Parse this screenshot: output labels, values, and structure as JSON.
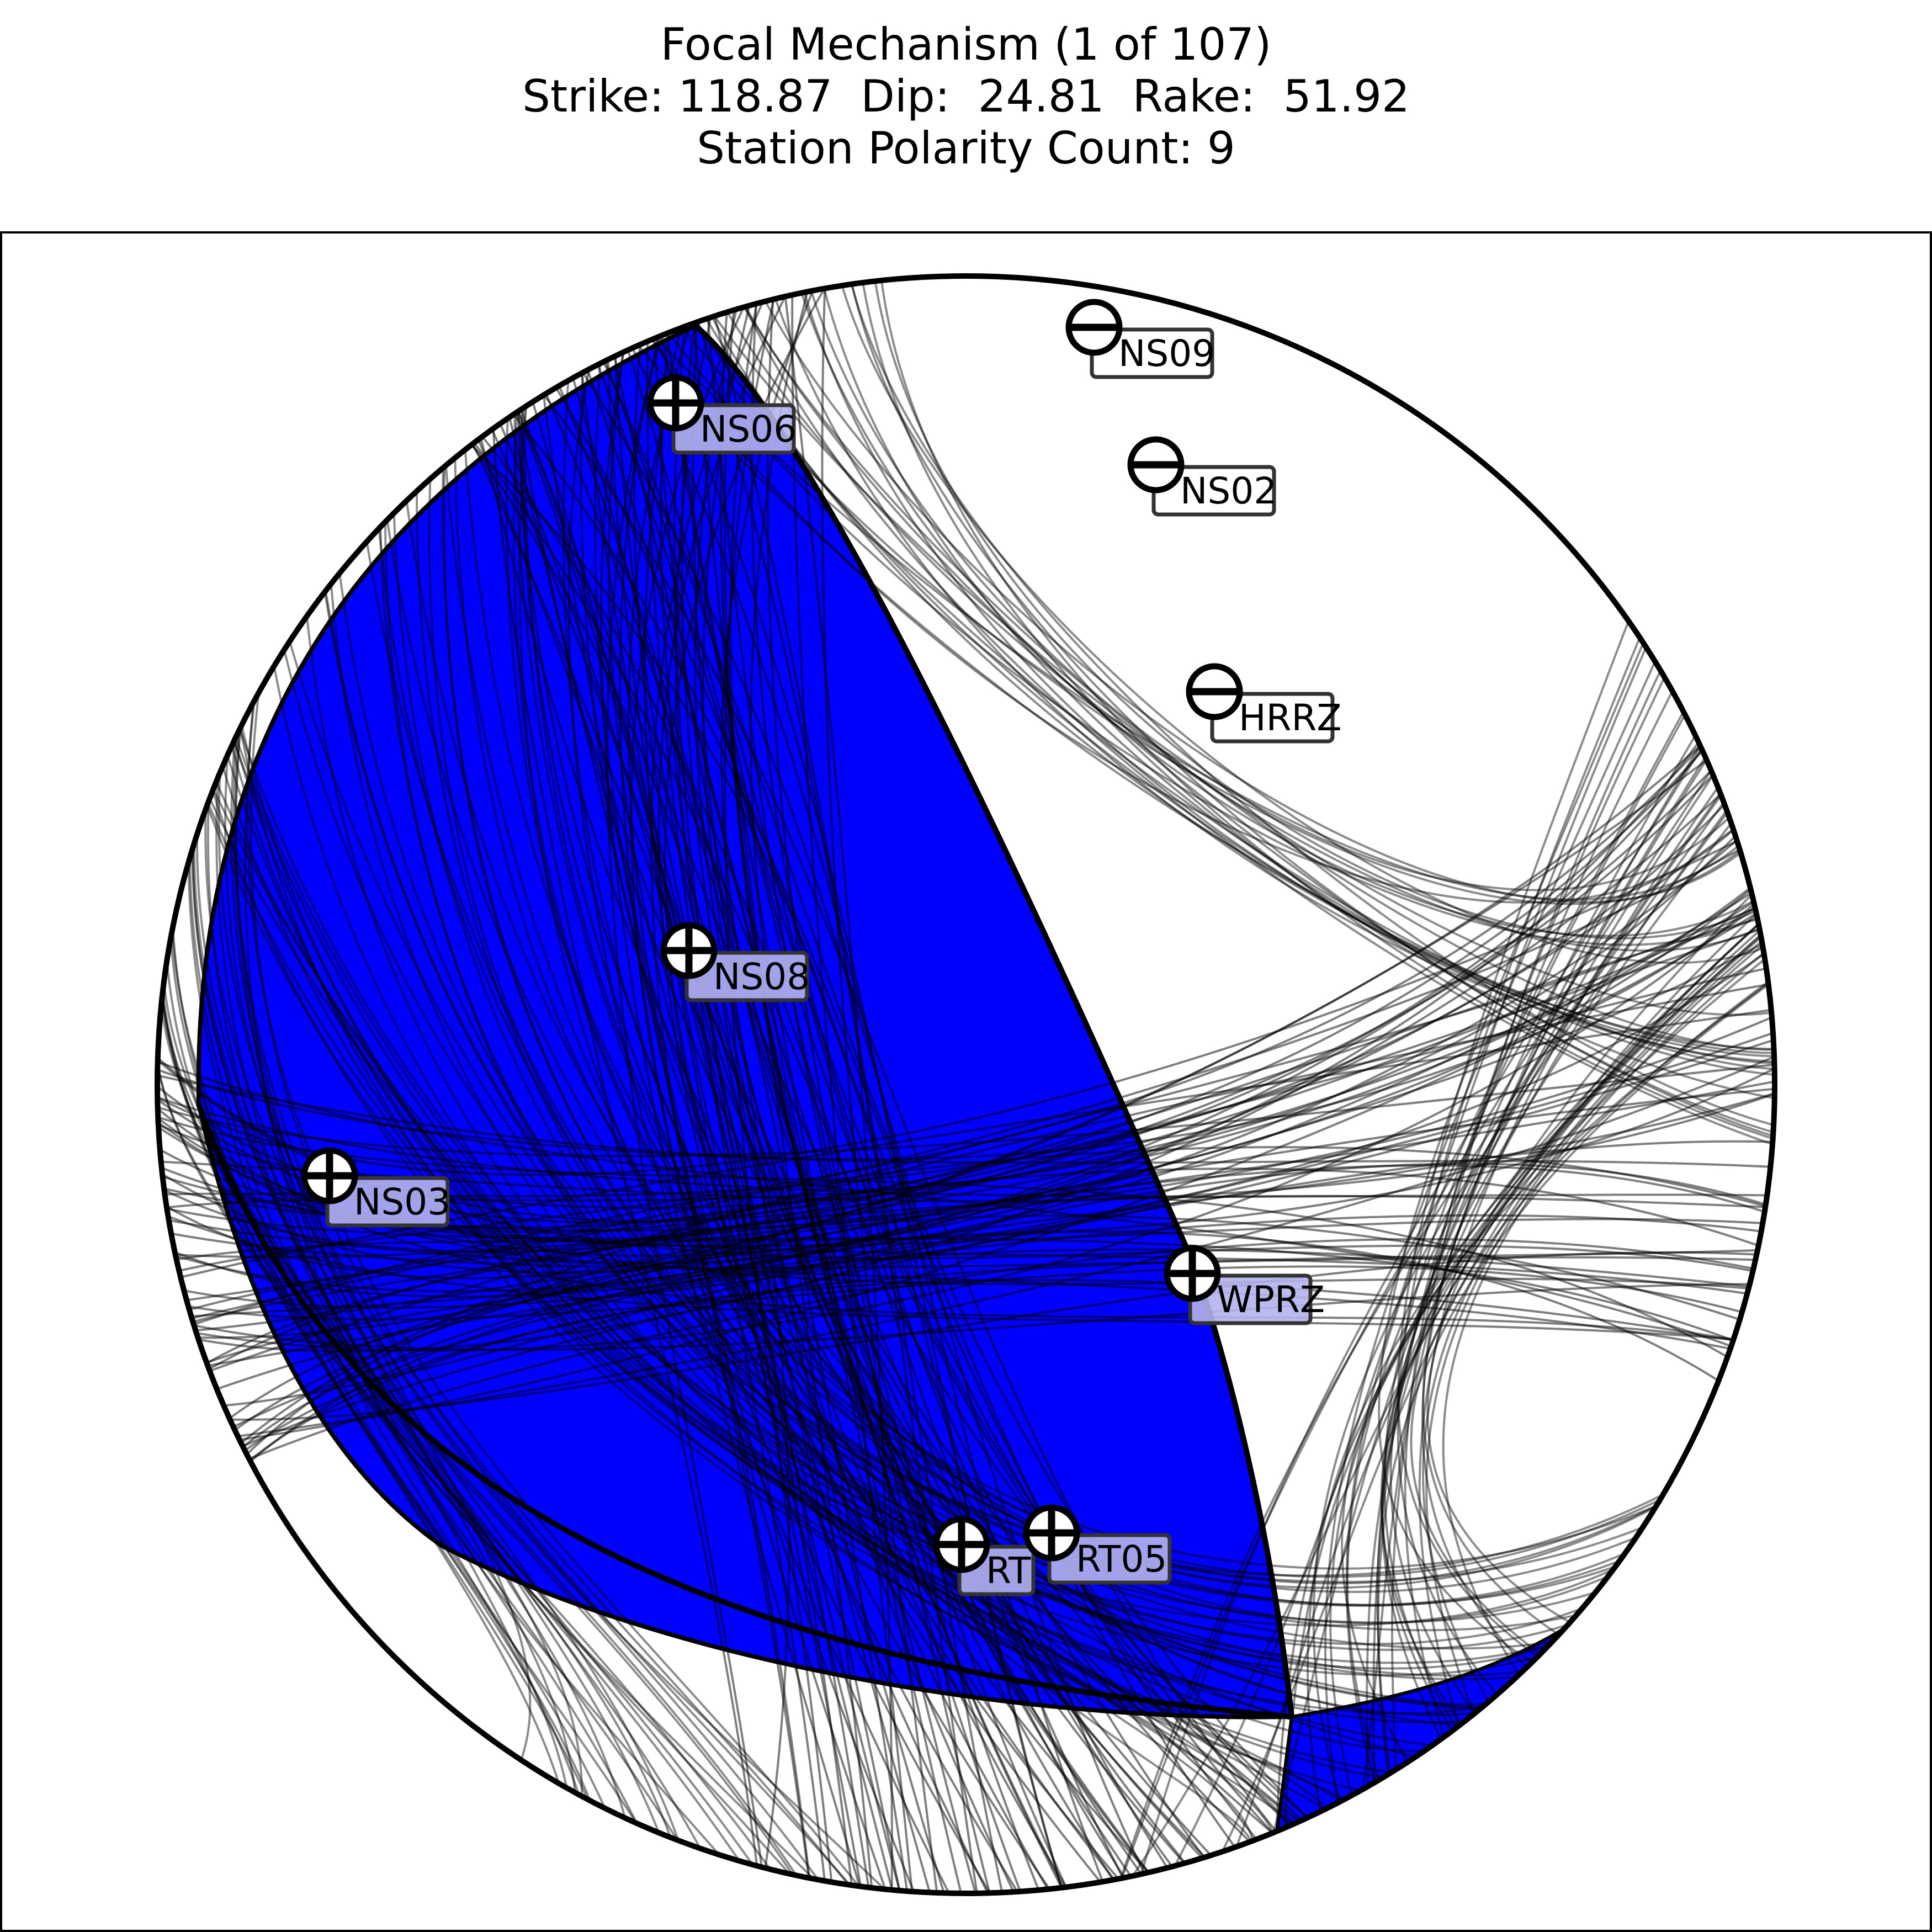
{
  "title": {
    "line1": "Focal Mechanism (1 of 107)",
    "line2": "Strike: 118.87  Dip:  24.81  Rake:  51.92",
    "line3": "Station Polarity Count: 9"
  },
  "colors": {
    "compression": "#0000ff",
    "dilatation": "#ffffff",
    "nodal_lines": "#000000",
    "compression_label_box": "#b4b4ee"
  },
  "stations": [
    {
      "name": "NS09",
      "polarity": "-"
    },
    {
      "name": "NS06",
      "polarity": "+"
    },
    {
      "name": "NS02",
      "polarity": "-"
    },
    {
      "name": "HRRZ",
      "polarity": "-"
    },
    {
      "name": "NS08",
      "polarity": "+"
    },
    {
      "name": "NS03",
      "polarity": "+"
    },
    {
      "name": "WPRZ",
      "polarity": "+"
    },
    {
      "name": "RT",
      "polarity": "+"
    },
    {
      "name": "RT05",
      "polarity": "+"
    }
  ]
}
